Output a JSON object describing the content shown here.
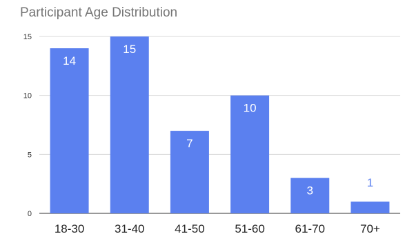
{
  "chart_data": {
    "type": "bar",
    "title": "Participant Age Distribution",
    "xlabel": "",
    "ylabel": "",
    "categories": [
      "18-30",
      "31-40",
      "41-50",
      "51-60",
      "61-70",
      "70+"
    ],
    "values": [
      14,
      15,
      7,
      10,
      3,
      1
    ],
    "ylim": [
      0,
      15
    ],
    "yticks": [
      0,
      5,
      10,
      15
    ],
    "grid": true,
    "legend": "none",
    "bar_color": "#5b80ef",
    "data_label_inside_color": "#ffffff",
    "data_label_outside_color": "#5b80ef"
  }
}
